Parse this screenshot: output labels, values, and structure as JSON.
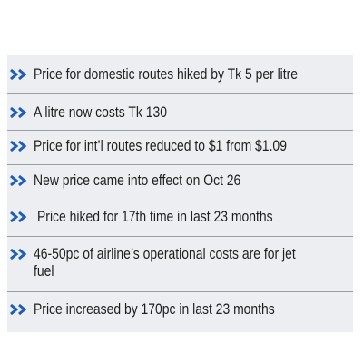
{
  "bullets": [
    {
      "text": "Price for domestic routes hiked by Tk 5 per litre"
    },
    {
      "text": "A litre now costs Tk 130"
    },
    {
      "text": "Price for int’l routes reduced to $1 from $1.09"
    },
    {
      "text": "New price came into effect on Oct 26"
    },
    {
      "text": "Price hiked for 17th time in last 23 months"
    },
    {
      "text": "46-50pc of airline’s operational costs are for jet fuel"
    },
    {
      "text": "Price increased by 170pc in last 23 months"
    }
  ],
  "icon": "double-chevron-right-icon",
  "colors": {
    "background": "#edeef1",
    "accent": "#1e5fb4",
    "text": "#1f1f1f",
    "rule": "#9aa0a6"
  }
}
